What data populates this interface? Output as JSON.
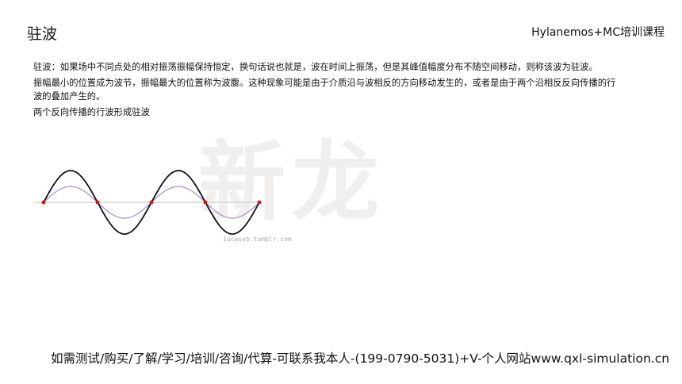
{
  "header": {
    "title": "驻波",
    "brand": "Hylanemos+MC培训课程"
  },
  "content": {
    "paragraphs": [
      "驻波：如果场中不同点处的相对振荡振幅保持恒定，换句话说也就是，波在时间上振荡，但是其峰值幅度分布不随空间移动，则称该波为驻波。",
      "振幅最小的位置成为波节，振幅最大的位置称为波腹。这种现象可能是由于介质沿与波相反的方向移动发生的，或者是由于两个沿相反反向传播的行波的叠加产生的。",
      "两个反向传播的行波形成驻波"
    ]
  },
  "figure": {
    "credit": "1ucasvb.tumblr.com",
    "watermark": "新龙",
    "colors": {
      "standing_wave": "#111111",
      "traveling_wave": "#a98ad0",
      "nodes": "#e01010",
      "axis": "#dddddd"
    },
    "wavelengths_shown": 2,
    "amplitude_ratio": 0.5
  },
  "footer": {
    "text": "如需测试/购买/了解/学习/培训/咨询/代算-可联系我本人-(199-0790-5031)+V-个人网站www.qxl-simulation.cn"
  }
}
